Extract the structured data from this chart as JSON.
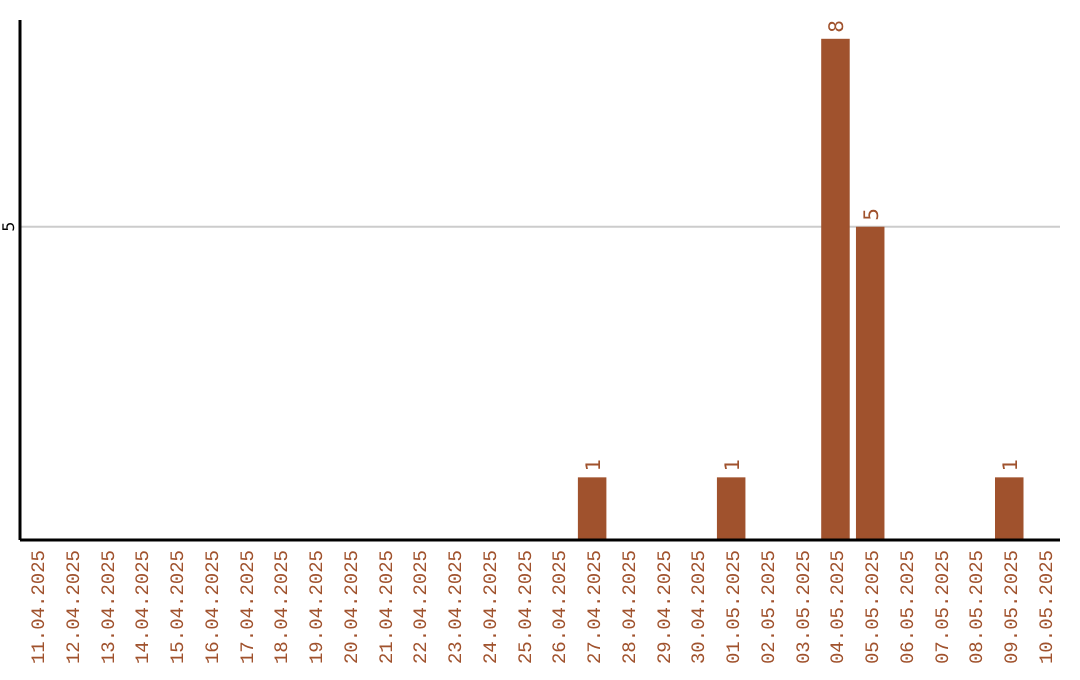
{
  "chart_data": {
    "type": "bar",
    "categories": [
      "11.04.2025",
      "12.04.2025",
      "13.04.2025",
      "14.04.2025",
      "15.04.2025",
      "16.04.2025",
      "17.04.2025",
      "18.04.2025",
      "19.04.2025",
      "20.04.2025",
      "21.04.2025",
      "22.04.2025",
      "23.04.2025",
      "24.04.2025",
      "25.04.2025",
      "26.04.2025",
      "27.04.2025",
      "28.04.2025",
      "29.04.2025",
      "30.04.2025",
      "01.05.2025",
      "02.05.2025",
      "03.05.2025",
      "04.05.2025",
      "05.05.2025",
      "06.05.2025",
      "07.05.2025",
      "08.05.2025",
      "09.05.2025",
      "10.05.2025"
    ],
    "values": [
      null,
      null,
      null,
      null,
      null,
      null,
      null,
      null,
      null,
      null,
      null,
      null,
      null,
      null,
      null,
      null,
      1,
      null,
      null,
      null,
      1,
      null,
      null,
      8,
      5,
      null,
      null,
      null,
      1,
      null
    ],
    "data_labels": true,
    "color": "#a0522d",
    "ylim": [
      0,
      8.3
    ],
    "ref_lines": [
      {
        "axis": "y",
        "value": 5,
        "label": "5",
        "color": "#cccccc"
      }
    ]
  }
}
